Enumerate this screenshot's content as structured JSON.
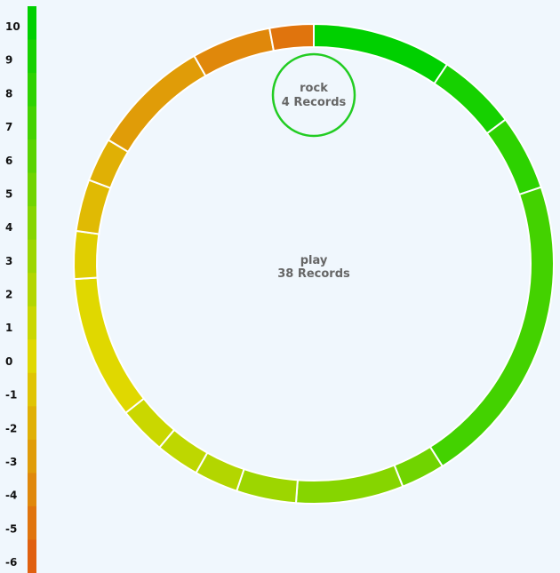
{
  "chart_data": {
    "type": "pie",
    "subtype": "donut",
    "color_scale": {
      "ticks": [
        "10",
        "9",
        "8",
        "7",
        "6",
        "5",
        "4",
        "3",
        "2",
        "1",
        "0",
        "-1",
        "-2",
        "-3",
        "-4",
        "-5",
        "-6"
      ],
      "domain": [
        -6,
        10
      ],
      "colors": {
        "min": "#e06010",
        "mid": "#e0d800",
        "max": "#00d000"
      }
    },
    "center": {
      "name": "play",
      "records_label": "38 Records"
    },
    "child_node": {
      "name": "rock",
      "records_label": "4 Records",
      "outline_color": "#22cc22"
    },
    "segments": [
      {
        "value": 3.33,
        "score": 10
      },
      {
        "value": 1.9,
        "score": 9
      },
      {
        "value": 1.81,
        "score": 8
      },
      {
        "value": 7.52,
        "score": 7
      },
      {
        "value": 1.05,
        "score": 5
      },
      {
        "value": 2.57,
        "score": 4
      },
      {
        "value": 1.43,
        "score": 3
      },
      {
        "value": 1.05,
        "score": 2
      },
      {
        "value": 1.05,
        "score": 1.5
      },
      {
        "value": 1.14,
        "score": 1
      },
      {
        "value": 3.43,
        "score": 0
      },
      {
        "value": 1.14,
        "score": -0.5
      },
      {
        "value": 1.24,
        "score": -1.5
      },
      {
        "value": 1.05,
        "score": -2
      },
      {
        "value": 2.86,
        "score": -3
      },
      {
        "value": 1.9,
        "score": -4
      },
      {
        "value": 1.05,
        "score": -5
      }
    ]
  }
}
